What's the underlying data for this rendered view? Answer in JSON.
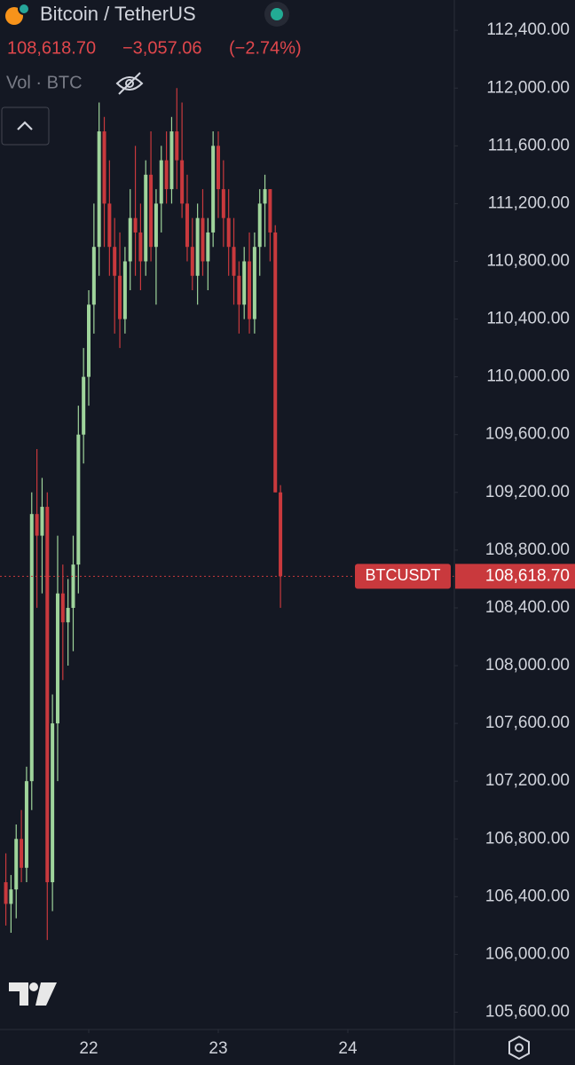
{
  "chart_data": {
    "type": "candlestick",
    "title": "Bitcoin / TetherUS",
    "volume_label": "Vol · BTC",
    "symbol": "BTCUSDT",
    "last_price": {
      "value": 108618.7,
      "label": "108,618.70"
    },
    "change": {
      "value": -3057.06,
      "label": "−3,057.06"
    },
    "change_pct": {
      "value": -2.74,
      "label": "(−2.74%)"
    },
    "up_color": "#9fd49b",
    "down_color": "#c9393d",
    "xlim": [
      21.315,
      24.822
    ],
    "xticks": [
      22,
      23,
      24
    ],
    "ylim": [
      105480,
      112610
    ],
    "yticks": [
      {
        "value": 105600,
        "label": "105,600.00"
      },
      {
        "value": 106000,
        "label": "106,000.00"
      },
      {
        "value": 106400,
        "label": "106,400.00"
      },
      {
        "value": 106800,
        "label": "106,800.00"
      },
      {
        "value": 107200,
        "label": "107,200.00"
      },
      {
        "value": 107600,
        "label": "107,600.00"
      },
      {
        "value": 108000,
        "label": "108,000.00"
      },
      {
        "value": 108400,
        "label": "108,400.00"
      },
      {
        "value": 108800,
        "label": "108,800.00"
      },
      {
        "value": 109200,
        "label": "109,200.00"
      },
      {
        "value": 109600,
        "label": "109,600.00"
      },
      {
        "value": 110000,
        "label": "110,000.00"
      },
      {
        "value": 110400,
        "label": "110,400.00"
      },
      {
        "value": 110800,
        "label": "110,800.00"
      },
      {
        "value": 111200,
        "label": "111,200.00"
      },
      {
        "value": 111600,
        "label": "111,600.00"
      },
      {
        "value": 112000,
        "label": "112,000.00"
      },
      {
        "value": 112400,
        "label": "112,400.00"
      }
    ],
    "x": [
      21.36,
      21.4,
      21.44,
      21.48,
      21.52,
      21.56,
      21.6,
      21.64,
      21.68,
      21.72,
      21.76,
      21.8,
      21.84,
      21.88,
      21.92,
      21.96,
      22.0,
      22.04,
      22.08,
      22.12,
      22.16,
      22.2,
      22.24,
      22.28,
      22.32,
      22.36,
      22.4,
      22.44,
      22.48,
      22.52,
      22.56,
      22.6,
      22.64,
      22.68,
      22.72,
      22.76,
      22.8,
      22.84,
      22.88,
      22.92,
      22.96,
      23.0,
      23.04,
      23.08,
      23.12,
      23.16,
      23.2,
      23.24,
      23.28,
      23.32,
      23.36,
      23.4,
      23.44,
      23.48
    ],
    "open": [
      106500,
      106350,
      106450,
      106800,
      106600,
      107200,
      109050,
      108900,
      109100,
      106500,
      107600,
      108500,
      108300,
      108400,
      108700,
      109600,
      110000,
      110500,
      110900,
      111700,
      111200,
      110900,
      110700,
      110400,
      110800,
      111100,
      111000,
      110800,
      111400,
      110900,
      111200,
      111500,
      111300,
      111700,
      111500,
      111200,
      110900,
      110700,
      111100,
      110800,
      111000,
      111600,
      111300,
      111100,
      110900,
      110700,
      110500,
      110800,
      110400,
      110900,
      111200,
      111300,
      111000,
      109200
    ],
    "high": [
      106700,
      106550,
      106900,
      107000,
      107300,
      109200,
      109500,
      109300,
      109200,
      107800,
      108900,
      108700,
      108600,
      108900,
      109800,
      110200,
      110600,
      111200,
      111900,
      111800,
      111500,
      111100,
      111000,
      110900,
      111300,
      111600,
      111200,
      111500,
      111700,
      111300,
      111600,
      111700,
      111800,
      112000,
      111900,
      111400,
      111100,
      111200,
      111300,
      111100,
      111700,
      111700,
      111500,
      111300,
      111100,
      110800,
      110900,
      111000,
      111000,
      111300,
      111400,
      111300,
      111050,
      109250
    ],
    "low": [
      106200,
      106150,
      106250,
      106500,
      106500,
      107000,
      108400,
      108500,
      106100,
      106300,
      107200,
      107900,
      108000,
      108100,
      108500,
      109400,
      109800,
      110300,
      110700,
      110900,
      110700,
      110300,
      110200,
      110300,
      110600,
      110700,
      110600,
      110700,
      110800,
      110500,
      111000,
      111200,
      111200,
      111300,
      111100,
      110800,
      110600,
      110500,
      110700,
      110600,
      110900,
      111100,
      110900,
      110700,
      110500,
      110300,
      110400,
      110300,
      110300,
      110700,
      110900,
      110800,
      109200,
      108400
    ],
    "close": [
      106350,
      106450,
      106800,
      106600,
      107200,
      109050,
      108900,
      109100,
      106500,
      107600,
      108500,
      108300,
      108400,
      108700,
      109600,
      110000,
      110500,
      110900,
      111700,
      111200,
      110900,
      110700,
      110400,
      110800,
      111100,
      111000,
      110800,
      111400,
      110900,
      111200,
      111500,
      111300,
      111700,
      111500,
      111200,
      110900,
      110700,
      111100,
      110800,
      111000,
      111600,
      111300,
      111100,
      110900,
      110700,
      110500,
      110800,
      110400,
      110900,
      111200,
      111300,
      111000,
      109200,
      108618.7
    ]
  }
}
